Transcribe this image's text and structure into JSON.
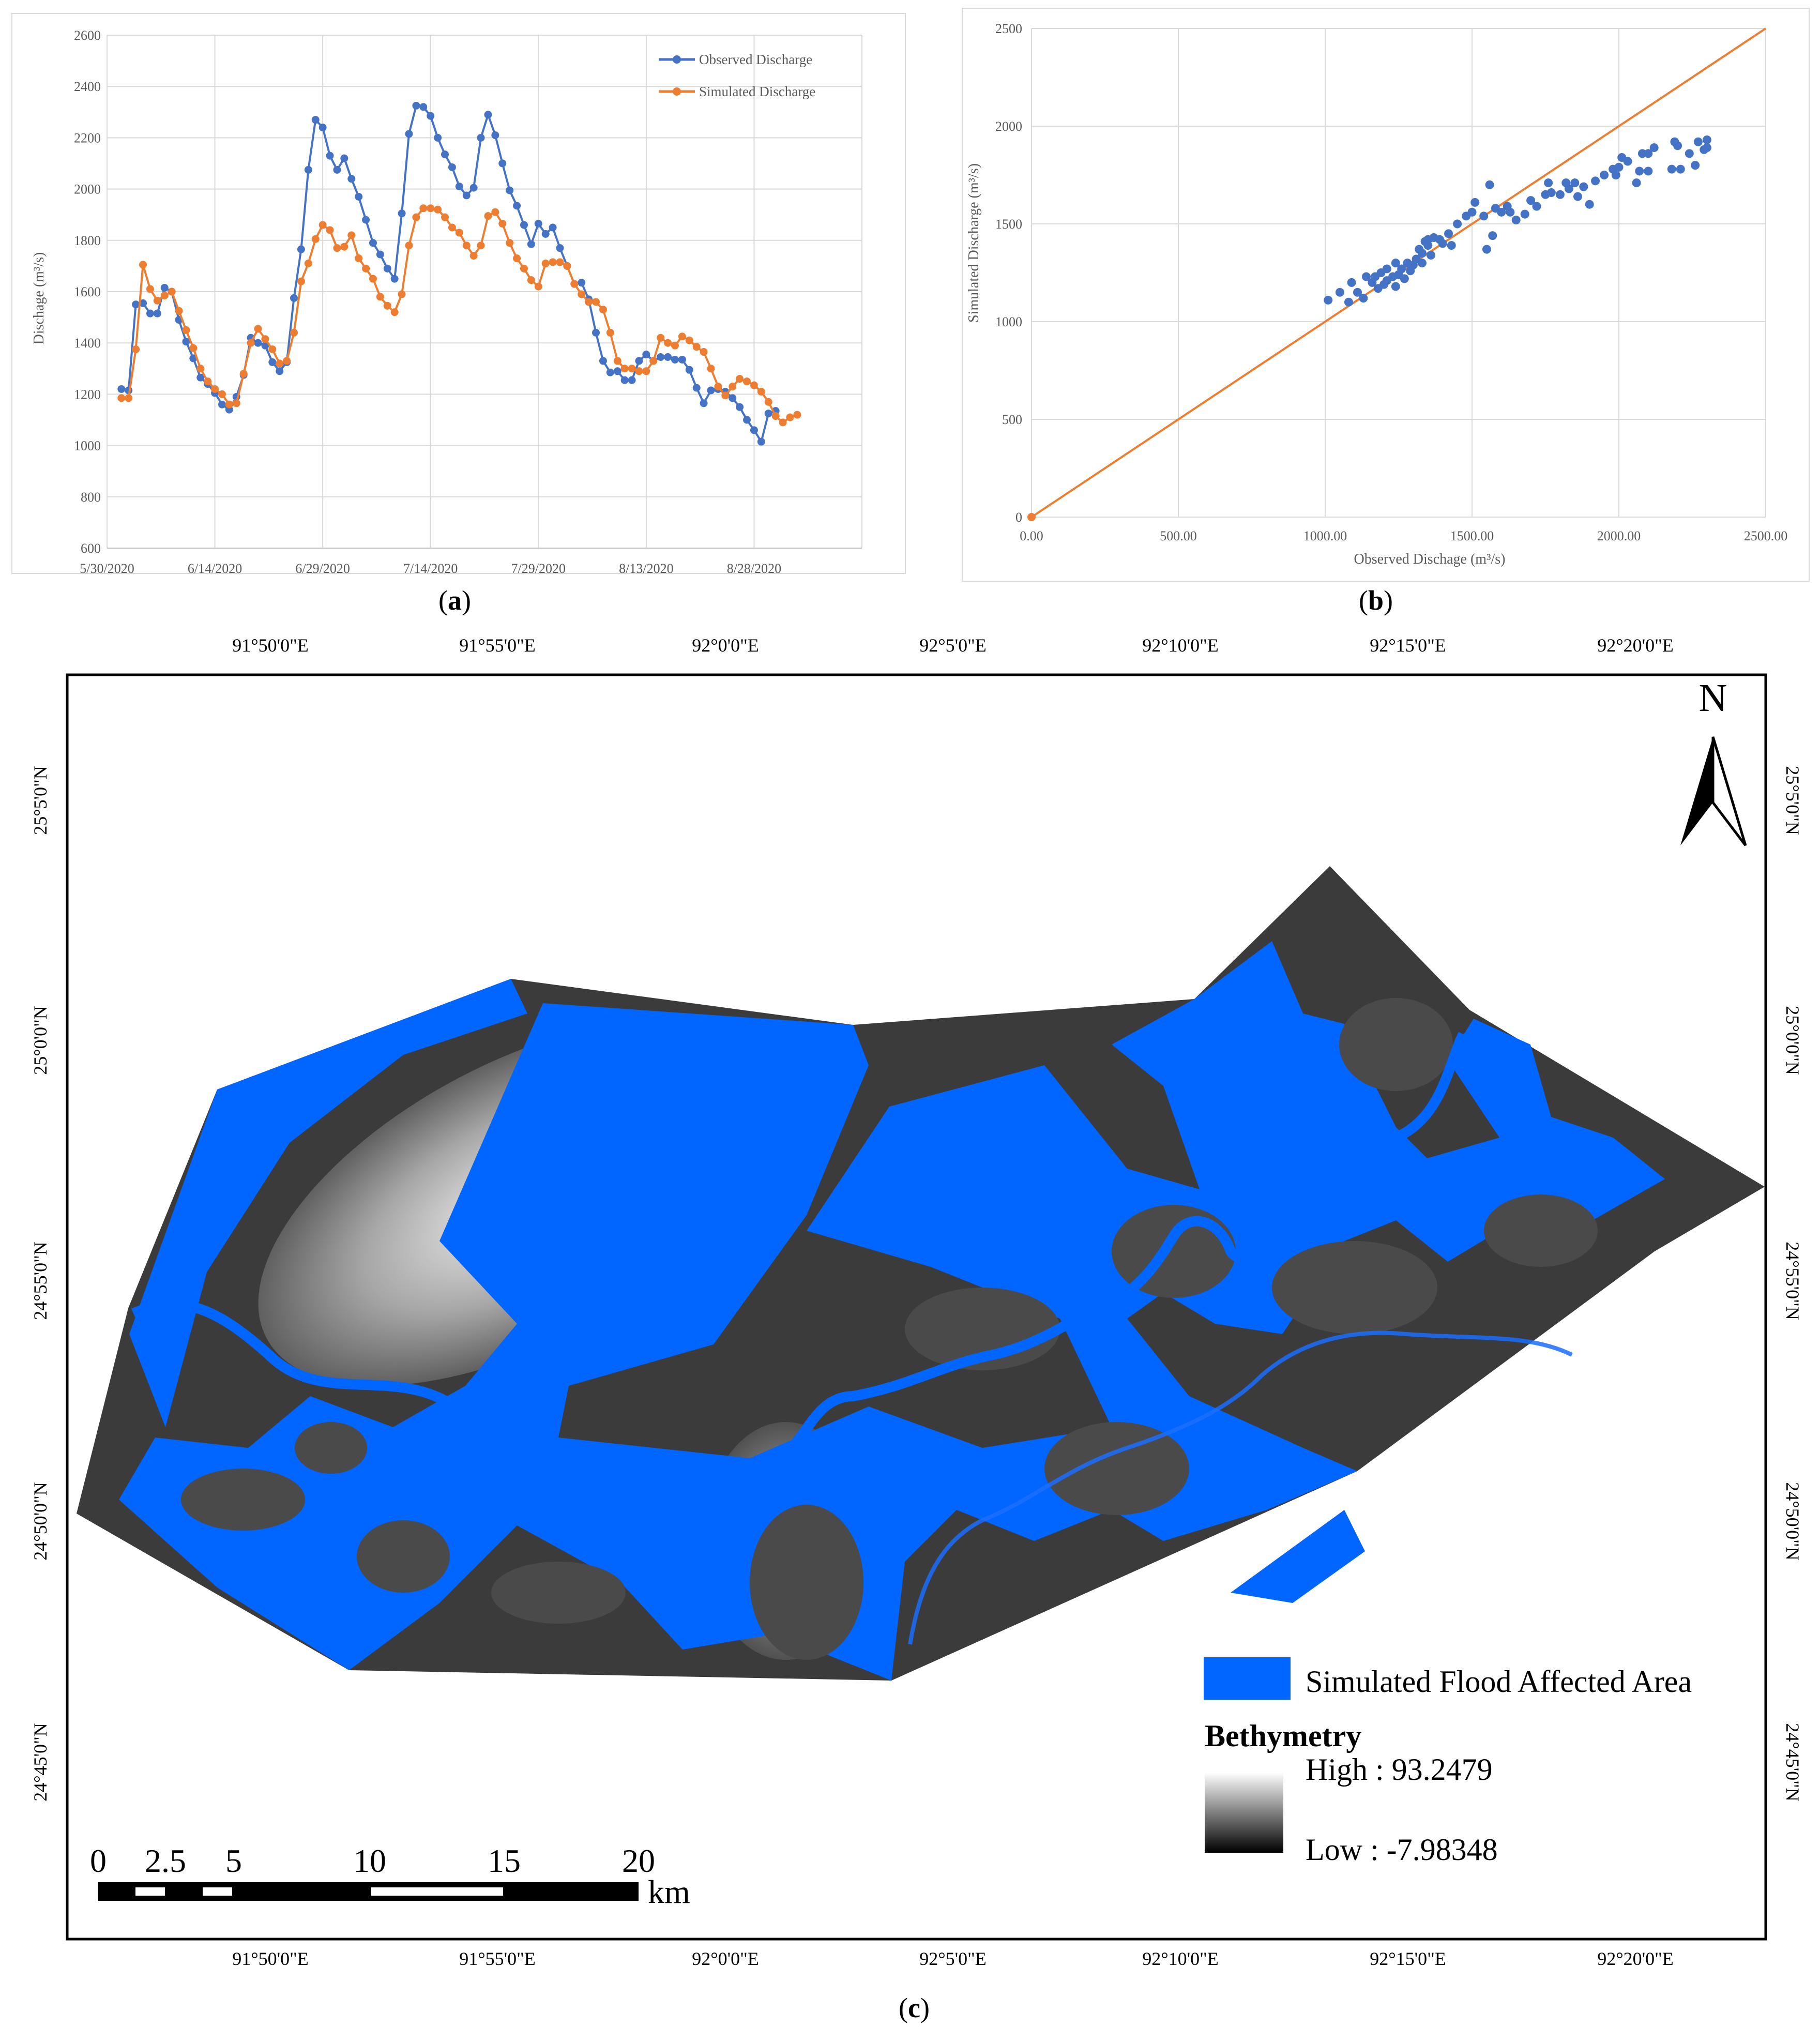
{
  "panels": {
    "a": {
      "label_open": "(",
      "label_letter": "a",
      "label_close": ")"
    },
    "b": {
      "label_open": "(",
      "label_letter": "b",
      "label_close": ")"
    },
    "c": {
      "label_open": "(",
      "label_letter": "c",
      "label_close": ")"
    }
  },
  "colors": {
    "observed": "#4472C4",
    "simulated": "#ED7D31",
    "flood": "#0066FF",
    "grid": "#D9D9D9",
    "axis": "#BFBFBF"
  },
  "chart_data": [
    {
      "type": "line",
      "panel": "a",
      "ylabel": "Dischage (m³/s)",
      "xlabel": "",
      "ylim": [
        600,
        2600
      ],
      "yticks": [
        600,
        800,
        1000,
        1200,
        1400,
        1600,
        1800,
        2000,
        2200,
        2400,
        2600
      ],
      "xlim": [
        "5/30/2020",
        "9/12/2020"
      ],
      "xticks": [
        "5/30/2020",
        "6/14/2020",
        "6/29/2020",
        "7/14/2020",
        "7/29/2020",
        "8/13/2020",
        "8/28/2020"
      ],
      "grid": true,
      "legend_position": "top-right",
      "x_start": "6/1/2020",
      "x_step_days": 1,
      "series": [
        {
          "name": "Observed Discharge",
          "color": "#4472C4",
          "values": [
            1220,
            1215,
            1550,
            1555,
            1515,
            1515,
            1615,
            1600,
            1490,
            1405,
            1340,
            1265,
            1240,
            1205,
            1160,
            1140,
            1190,
            1275,
            1420,
            1400,
            1390,
            1325,
            1290,
            1325,
            1575,
            1765,
            2075,
            2270,
            2240,
            2130,
            2075,
            2120,
            2040,
            1970,
            1880,
            1790,
            1745,
            1690,
            1650,
            1905,
            2215,
            2325,
            2320,
            2285,
            2200,
            2135,
            2085,
            2010,
            1975,
            2005,
            2200,
            2290,
            2210,
            2100,
            1995,
            1935,
            1860,
            1785,
            1865,
            1825,
            1850,
            1770,
            1700,
            1630,
            1635,
            1570,
            1440,
            1330,
            1285,
            1290,
            1255,
            1255,
            1330,
            1355,
            1330,
            1345,
            1345,
            1335,
            1335,
            1295,
            1225,
            1165,
            1215,
            1220,
            1210,
            1185,
            1150,
            1100,
            1060,
            1015,
            1125,
            1135
          ]
        },
        {
          "name": "Simulated Discharge",
          "color": "#ED7D31",
          "values": [
            1185,
            1185,
            1375,
            1705,
            1610,
            1565,
            1585,
            1600,
            1525,
            1450,
            1380,
            1300,
            1250,
            1220,
            1200,
            1160,
            1165,
            1280,
            1400,
            1455,
            1415,
            1375,
            1320,
            1330,
            1440,
            1640,
            1710,
            1805,
            1860,
            1840,
            1770,
            1775,
            1820,
            1730,
            1690,
            1650,
            1580,
            1545,
            1520,
            1590,
            1780,
            1890,
            1925,
            1925,
            1920,
            1890,
            1850,
            1830,
            1780,
            1740,
            1780,
            1895,
            1910,
            1865,
            1790,
            1730,
            1690,
            1645,
            1620,
            1710,
            1715,
            1715,
            1700,
            1630,
            1590,
            1560,
            1560,
            1530,
            1440,
            1330,
            1300,
            1300,
            1290,
            1290,
            1330,
            1420,
            1400,
            1390,
            1425,
            1410,
            1385,
            1365,
            1300,
            1230,
            1195,
            1230,
            1260,
            1250,
            1235,
            1210,
            1170,
            1115,
            1090,
            1110,
            1120
          ]
        }
      ]
    },
    {
      "type": "scatter",
      "panel": "b",
      "xlabel": "Observed Dischage (m³/s)",
      "ylabel": "Simulated Discharge (m³/s)",
      "xlim": [
        0,
        2500
      ],
      "ylim": [
        0,
        2500
      ],
      "xticks": [
        "0.00",
        "500.00",
        "1000.00",
        "1500.00",
        "2000.00",
        "2500.00"
      ],
      "yticks": [
        "0",
        "500",
        "1000",
        "1500",
        "2000",
        "2500"
      ],
      "grid": true,
      "reference_line": {
        "from": [
          0,
          0
        ],
        "to": [
          2500,
          2500
        ],
        "color": "#ED7D31"
      },
      "series": [
        {
          "name": "",
          "color": "#4472C4",
          "points": [
            [
              1010,
              1110
            ],
            [
              1050,
              1150
            ],
            [
              1080,
              1100
            ],
            [
              1090,
              1200
            ],
            [
              1110,
              1150
            ],
            [
              1130,
              1120
            ],
            [
              1140,
              1230
            ],
            [
              1160,
              1200
            ],
            [
              1170,
              1230
            ],
            [
              1180,
              1170
            ],
            [
              1190,
              1250
            ],
            [
              1200,
              1190
            ],
            [
              1210,
              1210
            ],
            [
              1210,
              1270
            ],
            [
              1230,
              1230
            ],
            [
              1240,
              1300
            ],
            [
              1240,
              1180
            ],
            [
              1250,
              1240
            ],
            [
              1260,
              1270
            ],
            [
              1270,
              1220
            ],
            [
              1280,
              1300
            ],
            [
              1290,
              1260
            ],
            [
              1300,
              1290
            ],
            [
              1310,
              1320
            ],
            [
              1320,
              1370
            ],
            [
              1330,
              1350
            ],
            [
              1330,
              1300
            ],
            [
              1340,
              1410
            ],
            [
              1350,
              1420
            ],
            [
              1350,
              1390
            ],
            [
              1360,
              1340
            ],
            [
              1370,
              1430
            ],
            [
              1390,
              1420
            ],
            [
              1400,
              1400
            ],
            [
              1420,
              1450
            ],
            [
              1430,
              1390
            ],
            [
              1450,
              1500
            ],
            [
              1480,
              1540
            ],
            [
              1500,
              1560
            ],
            [
              1510,
              1610
            ],
            [
              1540,
              1540
            ],
            [
              1550,
              1370
            ],
            [
              1560,
              1700
            ],
            [
              1570,
              1440
            ],
            [
              1580,
              1580
            ],
            [
              1600,
              1560
            ],
            [
              1620,
              1590
            ],
            [
              1630,
              1560
            ],
            [
              1650,
              1520
            ],
            [
              1680,
              1550
            ],
            [
              1700,
              1620
            ],
            [
              1720,
              1590
            ],
            [
              1750,
              1650
            ],
            [
              1760,
              1710
            ],
            [
              1770,
              1660
            ],
            [
              1800,
              1650
            ],
            [
              1820,
              1710
            ],
            [
              1830,
              1680
            ],
            [
              1850,
              1710
            ],
            [
              1860,
              1640
            ],
            [
              1880,
              1690
            ],
            [
              1900,
              1600
            ],
            [
              1920,
              1720
            ],
            [
              1950,
              1750
            ],
            [
              1980,
              1780
            ],
            [
              1990,
              1750
            ],
            [
              2000,
              1790
            ],
            [
              2010,
              1840
            ],
            [
              2030,
              1820
            ],
            [
              2060,
              1710
            ],
            [
              2070,
              1770
            ],
            [
              2080,
              1860
            ],
            [
              2100,
              1860
            ],
            [
              2100,
              1770
            ],
            [
              2120,
              1890
            ],
            [
              2180,
              1780
            ],
            [
              2190,
              1920
            ],
            [
              2200,
              1900
            ],
            [
              2210,
              1780
            ],
            [
              2240,
              1860
            ],
            [
              2260,
              1800
            ],
            [
              2270,
              1920
            ],
            [
              2290,
              1880
            ],
            [
              2300,
              1930
            ],
            [
              2300,
              1890
            ]
          ]
        }
      ]
    }
  ],
  "map": {
    "top_lon_labels": [
      "91°50'0\"E",
      "91°55'0\"E",
      "92°0'0\"E",
      "92°5'0\"E",
      "92°10'0\"E",
      "92°15'0\"E",
      "92°20'0\"E"
    ],
    "bottom_lon_labels": [
      "91°50'0\"E",
      "91°55'0\"E",
      "92°0'0\"E",
      "92°5'0\"E",
      "92°10'0\"E",
      "92°15'0\"E",
      "92°20'0\"E"
    ],
    "left_lat_labels": [
      "25°5'0\"N",
      "25°0'0\"N",
      "24°55'0\"N",
      "24°50'0\"N",
      "24°45'0\"N"
    ],
    "right_lat_labels": [
      "25°5'0\"N",
      "25°0'0\"N",
      "24°55'0\"N",
      "24°50'0\"N",
      "24°45'0\"N"
    ],
    "north_label": "N",
    "legend": {
      "flood_label": "Simulated Flood Affected Area",
      "bathymetry_title": "Bethymetry",
      "high_label": "High : 93.2479",
      "low_label": "Low : -7.98348"
    },
    "scale_bar": {
      "ticks": [
        "0",
        "2.5",
        "5",
        "10",
        "15",
        "20"
      ],
      "unit": "km"
    }
  }
}
